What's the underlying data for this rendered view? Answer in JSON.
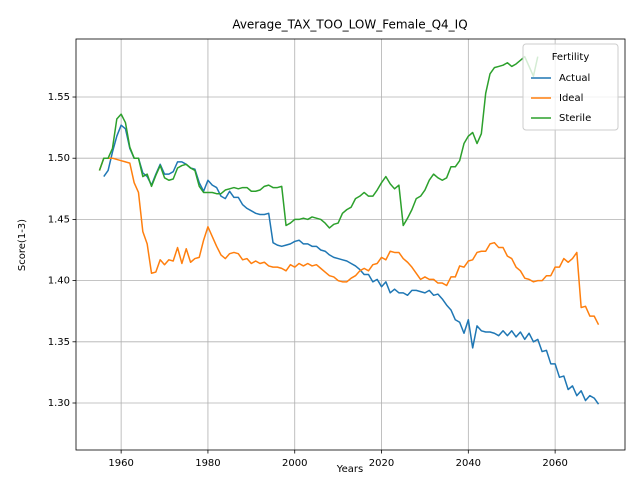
{
  "chart_data": {
    "type": "line",
    "title": "Average_TAX_TOO_LOW_Female_Q4_IQ",
    "x_label": "Years",
    "y_label": "Score(1-3)",
    "legend_title": "Fertility",
    "legend_position": "upper right",
    "grid": true,
    "xlim": [
      1949.6,
      2076.1
    ],
    "ylim": [
      1.2616,
      1.5974
    ],
    "xticks": [
      1960,
      1980,
      2000,
      2020,
      2040,
      2060
    ],
    "yticks": [
      {
        "value": 1.3,
        "label": "1.30"
      },
      1.35,
      {
        "value": 1.4,
        "label": "1.40"
      },
      1.45,
      {
        "value": 1.5,
        "label": "1.50"
      },
      1.55
    ],
    "x": [
      1955,
      1956,
      1957,
      1958,
      1959,
      1960,
      1961,
      1962,
      1963,
      1964,
      1965,
      1966,
      1967,
      1968,
      1969,
      1970,
      1971,
      1972,
      1973,
      1974,
      1975,
      1976,
      1977,
      1978,
      1979,
      1980,
      1981,
      1982,
      1983,
      1984,
      1985,
      1986,
      1987,
      1988,
      1989,
      1990,
      1991,
      1992,
      1993,
      1994,
      1995,
      1996,
      1997,
      1998,
      1999,
      2000,
      2001,
      2002,
      2003,
      2004,
      2005,
      2006,
      2007,
      2008,
      2009,
      2010,
      2011,
      2012,
      2013,
      2014,
      2015,
      2016,
      2017,
      2018,
      2019,
      2020,
      2021,
      2022,
      2023,
      2024,
      2025,
      2026,
      2027,
      2028,
      2029,
      2030,
      2031,
      2032,
      2033,
      2034,
      2035,
      2036,
      2037,
      2038,
      2039,
      2040,
      2041,
      2042,
      2043,
      2044,
      2045,
      2046,
      2047,
      2048,
      2049,
      2050,
      2051,
      2052,
      2053,
      2054,
      2055,
      2056,
      2057,
      2058,
      2059,
      2060,
      2061,
      2062,
      2063,
      2064,
      2065,
      2066,
      2067,
      2068,
      2069,
      2070
    ],
    "series": [
      {
        "name": "Actual",
        "color": "#1f77b4",
        "values": [
          null,
          1.485,
          1.49,
          1.505,
          1.518,
          1.527,
          1.524,
          1.508,
          1.5,
          1.5,
          1.488,
          1.485,
          1.478,
          1.487,
          1.495,
          1.487,
          1.487,
          1.489,
          1.497,
          1.497,
          1.495,
          1.492,
          1.491,
          1.48,
          1.473,
          1.482,
          1.478,
          1.476,
          1.469,
          1.467,
          1.473,
          1.468,
          1.468,
          1.462,
          1.459,
          1.457,
          1.455,
          1.454,
          1.454,
          1.455,
          1.431,
          1.429,
          1.428,
          1.429,
          1.43,
          1.432,
          1.433,
          1.43,
          1.43,
          1.428,
          1.428,
          1.425,
          1.424,
          1.421,
          1.419,
          1.418,
          1.417,
          1.416,
          1.414,
          1.412,
          1.409,
          1.405,
          1.405,
          1.399,
          1.401,
          1.395,
          1.399,
          1.39,
          1.393,
          1.39,
          1.39,
          1.388,
          1.392,
          1.392,
          1.391,
          1.39,
          1.392,
          1.388,
          1.389,
          1.385,
          1.38,
          1.376,
          1.368,
          1.366,
          1.357,
          1.368,
          1.345,
          1.363,
          1.359,
          1.358,
          1.358,
          1.357,
          1.355,
          1.359,
          1.355,
          1.359,
          1.354,
          1.358,
          1.352,
          1.357,
          1.35,
          1.352,
          1.342,
          1.343,
          1.332,
          1.332,
          1.321,
          1.322,
          1.311,
          1.314,
          1.306,
          1.31,
          1.302,
          1.306,
          1.304,
          1.299
        ]
      },
      {
        "name": "Ideal",
        "color": "#ff7f0e",
        "values": [
          1.49,
          1.5,
          1.5,
          1.5,
          1.499,
          1.498,
          1.497,
          1.496,
          1.48,
          1.472,
          1.44,
          1.43,
          1.406,
          1.407,
          1.417,
          1.413,
          1.417,
          1.416,
          1.427,
          1.414,
          1.426,
          1.415,
          1.418,
          1.419,
          1.433,
          1.444,
          1.436,
          1.428,
          1.421,
          1.418,
          1.422,
          1.423,
          1.422,
          1.417,
          1.418,
          1.414,
          1.416,
          1.414,
          1.415,
          1.412,
          1.411,
          1.411,
          1.41,
          1.408,
          1.413,
          1.411,
          1.414,
          1.412,
          1.414,
          1.412,
          1.413,
          1.41,
          1.407,
          1.404,
          1.403,
          1.4,
          1.399,
          1.399,
          1.402,
          1.404,
          1.408,
          1.41,
          1.408,
          1.413,
          1.414,
          1.419,
          1.417,
          1.424,
          1.423,
          1.423,
          1.418,
          1.415,
          1.411,
          1.406,
          1.401,
          1.403,
          1.401,
          1.401,
          1.398,
          1.398,
          1.396,
          1.403,
          1.403,
          1.412,
          1.411,
          1.416,
          1.417,
          1.423,
          1.424,
          1.424,
          1.43,
          1.431,
          1.427,
          1.427,
          1.42,
          1.418,
          1.411,
          1.408,
          1.402,
          1.401,
          1.399,
          1.4,
          1.4,
          1.404,
          1.404,
          1.411,
          1.411,
          1.418,
          1.415,
          1.418,
          1.423,
          1.378,
          1.379,
          1.371,
          1.371,
          1.364
        ]
      },
      {
        "name": "Sterile",
        "color": "#2ca02c",
        "values": [
          1.49,
          1.5,
          1.5,
          1.508,
          1.532,
          1.536,
          1.529,
          1.509,
          1.5,
          1.5,
          1.485,
          1.487,
          1.477,
          1.486,
          1.494,
          1.484,
          1.482,
          1.483,
          1.492,
          1.494,
          1.495,
          1.492,
          1.49,
          1.477,
          1.472,
          1.472,
          1.472,
          1.471,
          1.471,
          1.474,
          1.475,
          1.476,
          1.475,
          1.476,
          1.476,
          1.473,
          1.473,
          1.474,
          1.477,
          1.478,
          1.476,
          1.476,
          1.477,
          1.445,
          1.447,
          1.45,
          1.45,
          1.451,
          1.45,
          1.452,
          1.451,
          1.45,
          1.447,
          1.443,
          1.446,
          1.447,
          1.455,
          1.458,
          1.46,
          1.467,
          1.469,
          1.472,
          1.469,
          1.469,
          1.474,
          1.48,
          1.485,
          1.479,
          1.475,
          1.478,
          1.445,
          1.451,
          1.458,
          1.467,
          1.469,
          1.474,
          1.482,
          1.487,
          1.484,
          1.482,
          1.484,
          1.493,
          1.493,
          1.498,
          1.512,
          1.518,
          1.521,
          1.512,
          1.52,
          1.553,
          1.569,
          1.574,
          1.575,
          1.576,
          1.578,
          1.575,
          1.577,
          1.58,
          1.583,
          1.575,
          1.567,
          1.583,
          null,
          null,
          null,
          null,
          null,
          null,
          null,
          null,
          null,
          null,
          null,
          null,
          null,
          null
        ]
      }
    ]
  }
}
